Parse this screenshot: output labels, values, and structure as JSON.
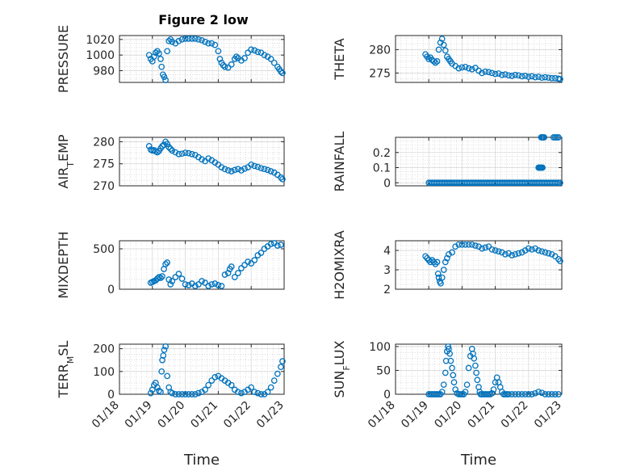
{
  "figure": {
    "title": "Figure 2 low",
    "marker_color": "#0072BD"
  },
  "chart_data": [
    {
      "type": "scatter",
      "title": "Figure 2 low",
      "ylabel": "PRESSURE",
      "xlabel": "",
      "ylim": [
        965,
        1025
      ],
      "yticks": [
        980,
        1000,
        1020
      ],
      "yticklabels": [
        "980",
        "1000",
        "1020"
      ],
      "xlim": [
        18,
        23
      ],
      "grid": true,
      "x": [
        18.9,
        18.95,
        19.0,
        19.05,
        19.1,
        19.15,
        19.2,
        19.25,
        19.28,
        19.32,
        19.36,
        19.4,
        19.45,
        19.5,
        19.55,
        19.6,
        19.7,
        19.8,
        19.9,
        20.0,
        20.1,
        20.2,
        20.3,
        20.4,
        20.5,
        20.6,
        20.7,
        20.8,
        20.9,
        21.0,
        21.05,
        21.1,
        21.15,
        21.2,
        21.3,
        21.4,
        21.5,
        21.55,
        21.6,
        21.7,
        21.8,
        21.9,
        22.0,
        22.1,
        22.2,
        22.3,
        22.4,
        22.5,
        22.6,
        22.7,
        22.8,
        22.85,
        22.9,
        22.95
      ],
      "y": [
        1000,
        995,
        992,
        998,
        1003,
        1005,
        1002,
        995,
        985,
        975,
        972,
        968,
        1005,
        1018,
        1020,
        1017,
        1015,
        1018,
        1020,
        1021,
        1021,
        1021,
        1021,
        1020,
        1019,
        1017,
        1015,
        1015,
        1013,
        1005,
        995,
        990,
        987,
        985,
        984,
        988,
        995,
        998,
        996,
        993,
        996,
        1003,
        1007,
        1006,
        1004,
        1003,
        1000,
        998,
        995,
        990,
        985,
        982,
        979,
        977
      ]
    },
    {
      "type": "scatter",
      "title": "",
      "ylabel": "THETA",
      "xlabel": "",
      "ylim": [
        273,
        283
      ],
      "yticks": [
        275,
        280
      ],
      "yticklabels": [
        "275",
        "280"
      ],
      "xlim": [
        18,
        23
      ],
      "grid": true,
      "x": [
        18.9,
        18.95,
        19.0,
        19.05,
        19.1,
        19.15,
        19.2,
        19.25,
        19.3,
        19.35,
        19.4,
        19.45,
        19.5,
        19.55,
        19.6,
        19.65,
        19.7,
        19.8,
        19.9,
        20.0,
        20.1,
        20.2,
        20.3,
        20.4,
        20.5,
        20.6,
        20.7,
        20.8,
        20.9,
        21.0,
        21.1,
        21.2,
        21.3,
        21.4,
        21.5,
        21.6,
        21.7,
        21.8,
        21.9,
        22.0,
        22.1,
        22.2,
        22.3,
        22.4,
        22.5,
        22.6,
        22.7,
        22.8,
        22.9,
        22.95
      ],
      "y": [
        279,
        278.5,
        278,
        278.3,
        277.8,
        277.5,
        277.2,
        277.5,
        280,
        281.5,
        282.3,
        281,
        279.8,
        278.5,
        278,
        277.5,
        277,
        276.5,
        276,
        276.2,
        276.3,
        276,
        275.8,
        276.1,
        275.5,
        275,
        275.3,
        275.2,
        275,
        274.8,
        274.9,
        274.6,
        274.7,
        274.5,
        274.4,
        274.6,
        274.5,
        274.3,
        274.4,
        274.2,
        274.3,
        274.1,
        274.2,
        274.0,
        274.1,
        274.0,
        273.9,
        273.9,
        273.8,
        273.7
      ]
    },
    {
      "type": "scatter",
      "title": "",
      "ylabel": "AIR_TEMP",
      "xlabel": "",
      "ylim": [
        270,
        281
      ],
      "yticks": [
        270,
        275,
        280
      ],
      "yticklabels": [
        "270",
        "275",
        "280"
      ],
      "xlim": [
        18,
        23
      ],
      "grid": true,
      "x": [
        18.9,
        18.95,
        19.0,
        19.05,
        19.1,
        19.15,
        19.2,
        19.25,
        19.3,
        19.35,
        19.4,
        19.45,
        19.5,
        19.55,
        19.6,
        19.7,
        19.8,
        19.9,
        20.0,
        20.1,
        20.2,
        20.3,
        20.4,
        20.5,
        20.6,
        20.7,
        20.8,
        20.9,
        21.0,
        21.1,
        21.2,
        21.3,
        21.4,
        21.5,
        21.6,
        21.7,
        21.8,
        21.9,
        22.0,
        22.1,
        22.2,
        22.3,
        22.4,
        22.5,
        22.6,
        22.7,
        22.8,
        22.9,
        22.95
      ],
      "y": [
        279,
        278.2,
        278,
        278.1,
        277.8,
        277.6,
        277.9,
        278.5,
        279,
        279.3,
        280,
        279.5,
        278.8,
        278.4,
        278,
        277.6,
        277.2,
        277.3,
        277.5,
        277.4,
        277.2,
        277,
        276.5,
        276,
        275.6,
        276.2,
        275.8,
        275.3,
        274.8,
        274.2,
        273.8,
        273.5,
        273.3,
        273.6,
        273.8,
        273.5,
        273.9,
        274.2,
        274.8,
        274.5,
        274.3,
        274.0,
        273.8,
        273.6,
        273.3,
        273.0,
        272.5,
        271.9,
        271.5
      ]
    },
    {
      "type": "scatter",
      "title": "",
      "ylabel": "RAINFALL",
      "xlabel": "",
      "ylim": [
        -0.02,
        0.3
      ],
      "yticks": [
        0,
        0.1,
        0.2
      ],
      "yticklabels": [
        "0",
        "0.1",
        "0.2"
      ],
      "xlim": [
        18,
        23
      ],
      "grid": true,
      "x": [
        19.0,
        19.05,
        19.1,
        19.15,
        19.2,
        19.25,
        19.3,
        19.35,
        19.4,
        19.45,
        19.5,
        19.55,
        19.6,
        19.65,
        19.7,
        19.75,
        19.8,
        19.85,
        19.9,
        19.95,
        20.0,
        20.05,
        20.1,
        20.15,
        20.2,
        20.25,
        20.3,
        20.35,
        20.4,
        20.45,
        20.5,
        20.55,
        20.6,
        20.65,
        20.7,
        20.75,
        20.8,
        20.85,
        20.9,
        20.95,
        21.0,
        21.05,
        21.1,
        21.15,
        21.2,
        21.25,
        21.3,
        21.35,
        21.4,
        21.45,
        21.5,
        21.55,
        21.6,
        21.65,
        21.7,
        21.75,
        21.8,
        21.85,
        21.9,
        21.95,
        22.0,
        22.05,
        22.1,
        22.15,
        22.2,
        22.25,
        22.3,
        22.35,
        22.4,
        22.45,
        22.5,
        22.55,
        22.6,
        22.65,
        22.7,
        22.75,
        22.8,
        22.85,
        22.9,
        22.95,
        22.3,
        22.33,
        22.36,
        22.39,
        22.42,
        22.38,
        22.41,
        22.44,
        22.47,
        22.75,
        22.8,
        22.85,
        22.9
      ],
      "y": [
        0,
        0,
        0,
        0,
        0,
        0,
        0,
        0,
        0,
        0,
        0,
        0,
        0,
        0,
        0,
        0,
        0,
        0,
        0,
        0,
        0,
        0,
        0,
        0,
        0,
        0,
        0,
        0,
        0,
        0,
        0,
        0,
        0,
        0,
        0,
        0,
        0,
        0,
        0,
        0,
        0,
        0,
        0,
        0,
        0,
        0,
        0,
        0,
        0,
        0,
        0,
        0,
        0,
        0,
        0,
        0,
        0,
        0,
        0,
        0,
        0,
        0,
        0,
        0,
        0,
        0,
        0,
        0,
        0,
        0,
        0,
        0,
        0,
        0,
        0,
        0,
        0,
        0,
        0,
        0,
        0.1,
        0.1,
        0.1,
        0.1,
        0.1,
        0.3,
        0.3,
        0.3,
        0.3,
        0.3,
        0.3,
        0.3,
        0.3
      ]
    },
    {
      "type": "scatter",
      "title": "",
      "ylabel": "MIXDEPTH",
      "xlabel": "",
      "ylim": [
        0,
        600
      ],
      "yticks": [
        0,
        500
      ],
      "yticklabels": [
        "0",
        "500"
      ],
      "xlim": [
        18,
        23
      ],
      "grid": true,
      "x": [
        18.95,
        19.0,
        19.05,
        19.1,
        19.15,
        19.2,
        19.25,
        19.3,
        19.35,
        19.4,
        19.45,
        19.5,
        19.55,
        19.6,
        19.7,
        19.8,
        19.9,
        20.0,
        20.1,
        20.2,
        20.3,
        20.4,
        20.5,
        20.6,
        20.7,
        20.8,
        20.9,
        21.0,
        21.1,
        21.2,
        21.3,
        21.35,
        21.4,
        21.5,
        21.6,
        21.7,
        21.8,
        21.9,
        22.0,
        22.1,
        22.2,
        22.3,
        22.4,
        22.5,
        22.6,
        22.7,
        22.8,
        22.9
      ],
      "y": [
        80,
        90,
        100,
        110,
        130,
        150,
        140,
        160,
        250,
        310,
        330,
        120,
        60,
        100,
        150,
        190,
        130,
        60,
        50,
        70,
        40,
        60,
        100,
        80,
        40,
        60,
        70,
        50,
        40,
        180,
        200,
        250,
        280,
        150,
        200,
        260,
        300,
        340,
        320,
        360,
        420,
        450,
        500,
        530,
        560,
        570,
        540,
        550
      ]
    },
    {
      "type": "scatter",
      "title": "",
      "ylabel": "H2OMIXRA",
      "xlabel": "",
      "ylim": [
        2,
        4.5
      ],
      "yticks": [
        2,
        3,
        4
      ],
      "yticklabels": [
        "2",
        "3",
        "4"
      ],
      "xlim": [
        18,
        23
      ],
      "grid": true,
      "x": [
        18.9,
        18.95,
        19.0,
        19.05,
        19.1,
        19.15,
        19.2,
        19.25,
        19.28,
        19.3,
        19.33,
        19.36,
        19.4,
        19.45,
        19.5,
        19.55,
        19.6,
        19.7,
        19.8,
        19.9,
        20.0,
        20.1,
        20.2,
        20.3,
        20.4,
        20.5,
        20.6,
        20.7,
        20.8,
        20.9,
        21.0,
        21.1,
        21.2,
        21.3,
        21.4,
        21.5,
        21.6,
        21.7,
        21.8,
        21.9,
        22.0,
        22.1,
        22.2,
        22.3,
        22.4,
        22.5,
        22.6,
        22.7,
        22.8,
        22.9,
        22.95
      ],
      "y": [
        3.7,
        3.6,
        3.5,
        3.4,
        3.5,
        3.4,
        3.3,
        3.4,
        2.8,
        2.6,
        2.4,
        2.3,
        2.6,
        3.0,
        3.4,
        3.6,
        3.8,
        3.9,
        4.2,
        4.3,
        4.3,
        4.3,
        4.3,
        4.3,
        4.25,
        4.2,
        4.1,
        4.15,
        4.2,
        4.05,
        4.0,
        3.95,
        3.9,
        3.8,
        3.85,
        3.75,
        3.8,
        3.85,
        3.9,
        4.0,
        4.1,
        4.05,
        4.1,
        4.0,
        3.95,
        3.9,
        3.85,
        3.8,
        3.7,
        3.55,
        3.45
      ]
    },
    {
      "type": "scatter",
      "title": "",
      "ylabel": "TERR_MSL",
      "xlabel": "Time",
      "ylim": [
        0,
        220
      ],
      "yticks": [
        0,
        100,
        200
      ],
      "yticklabels": [
        "0",
        "100",
        "200"
      ],
      "xlim": [
        18,
        23
      ],
      "xticks": [
        18,
        19,
        20,
        21,
        22,
        23
      ],
      "xticklabels": [
        "01/18",
        "01/19",
        "01/20",
        "01/21",
        "01/22",
        "01/23"
      ],
      "grid": true,
      "x": [
        18.95,
        19.0,
        19.05,
        19.1,
        19.15,
        19.2,
        19.25,
        19.28,
        19.3,
        19.33,
        19.36,
        19.4,
        19.45,
        19.5,
        19.55,
        19.6,
        19.7,
        19.8,
        19.9,
        20.0,
        20.1,
        20.2,
        20.3,
        20.4,
        20.5,
        20.6,
        20.7,
        20.8,
        20.9,
        21.0,
        21.1,
        21.2,
        21.3,
        21.4,
        21.5,
        21.6,
        21.7,
        21.8,
        21.9,
        22.0,
        22.1,
        22.2,
        22.3,
        22.4,
        22.5,
        22.6,
        22.7,
        22.8,
        22.9,
        22.95
      ],
      "y": [
        5,
        20,
        40,
        50,
        30,
        15,
        10,
        100,
        150,
        170,
        195,
        210,
        80,
        30,
        10,
        5,
        0,
        0,
        0,
        0,
        0,
        0,
        0,
        5,
        10,
        20,
        40,
        60,
        75,
        80,
        70,
        60,
        50,
        40,
        20,
        10,
        5,
        10,
        20,
        30,
        10,
        5,
        0,
        0,
        10,
        30,
        60,
        90,
        120,
        145
      ]
    },
    {
      "type": "scatter",
      "title": "",
      "ylabel": "SUN_FLUX",
      "xlabel": "Time",
      "ylim": [
        0,
        105
      ],
      "yticks": [
        0,
        50,
        100
      ],
      "yticklabels": [
        "0",
        "50",
        "100"
      ],
      "xlim": [
        18,
        23
      ],
      "xticks": [
        18,
        19,
        20,
        21,
        22,
        23
      ],
      "xticklabels": [
        "01/18",
        "01/19",
        "01/20",
        "01/21",
        "01/22",
        "01/23"
      ],
      "grid": true,
      "x": [
        19.0,
        19.05,
        19.1,
        19.15,
        19.2,
        19.25,
        19.3,
        19.35,
        19.4,
        19.45,
        19.5,
        19.52,
        19.55,
        19.58,
        19.6,
        19.63,
        19.66,
        19.7,
        19.73,
        19.76,
        19.8,
        19.85,
        19.9,
        19.95,
        20.0,
        20.05,
        20.1,
        20.15,
        20.2,
        20.25,
        20.3,
        20.33,
        20.36,
        20.4,
        20.43,
        20.46,
        20.5,
        20.53,
        20.56,
        20.6,
        20.65,
        20.7,
        20.75,
        20.8,
        20.85,
        20.9,
        20.95,
        21.0,
        21.05,
        21.1,
        21.15,
        21.2,
        21.25,
        21.3,
        21.35,
        21.4,
        21.5,
        21.6,
        21.7,
        21.8,
        21.9,
        22.0,
        22.1,
        22.2,
        22.3,
        22.4,
        22.5,
        22.6,
        22.7,
        22.8,
        22.9
      ],
      "y": [
        0,
        0,
        0,
        0,
        0,
        0,
        0,
        0,
        5,
        20,
        45,
        70,
        90,
        100,
        95,
        85,
        70,
        55,
        40,
        25,
        10,
        2,
        0,
        0,
        0,
        0,
        5,
        20,
        55,
        80,
        95,
        85,
        75,
        60,
        45,
        30,
        15,
        5,
        0,
        0,
        0,
        0,
        0,
        0,
        0,
        2,
        10,
        25,
        35,
        25,
        15,
        5,
        0,
        0,
        0,
        0,
        0,
        0,
        0,
        0,
        0,
        0,
        0,
        2,
        5,
        3,
        0,
        0,
        0,
        0,
        0
      ]
    }
  ]
}
